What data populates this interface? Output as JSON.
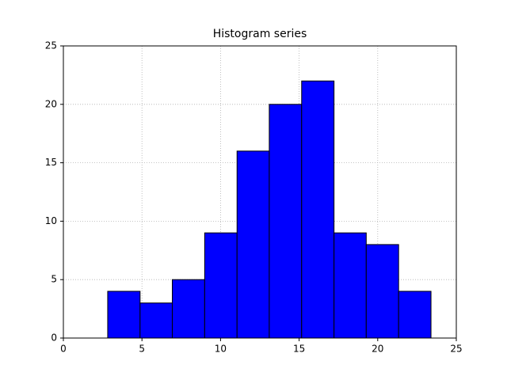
{
  "chart_data": {
    "type": "histogram",
    "title": "Histogram series",
    "bins": [
      2.82,
      4.88,
      6.93,
      8.99,
      11.05,
      13.1,
      15.16,
      17.22,
      19.27,
      21.33,
      23.39
    ],
    "values": [
      4,
      3,
      5,
      9,
      16,
      20,
      22,
      9,
      8,
      4
    ],
    "color": "#0000ff",
    "edgecolor": "#000000",
    "xlim": [
      0,
      25
    ],
    "xticks": [
      0,
      5,
      10,
      15,
      20,
      25
    ],
    "ylim": [
      0,
      25
    ],
    "yticks": [
      0,
      5,
      10,
      15,
      20,
      25
    ],
    "grid": true
  }
}
